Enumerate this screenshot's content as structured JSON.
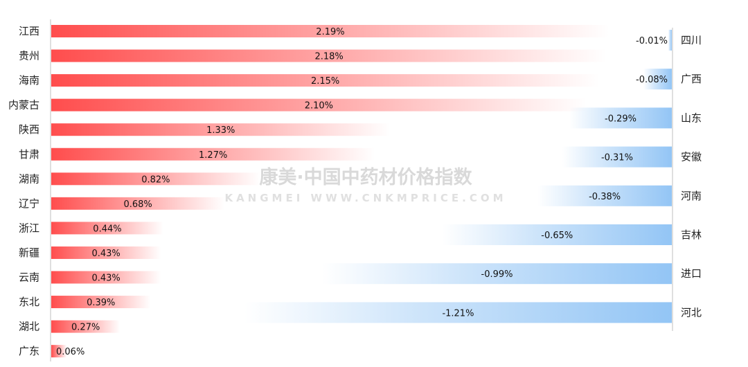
{
  "watermark": {
    "line1": "康美·中国中药材价格指数",
    "line2": "KANGMEI WWW.CNKMPRICE.COM"
  },
  "colors": {
    "positive": "#ff4d4d",
    "negative": "#93c5f5",
    "axis": "#bfbfbf"
  },
  "chart_data": [
    {
      "type": "bar",
      "orientation": "horizontal",
      "categories": [
        "江西",
        "贵州",
        "海南",
        "内蒙古",
        "陕西",
        "甘肃",
        "湖南",
        "辽宁",
        "浙江",
        "新疆",
        "云南",
        "东北",
        "湖北",
        "广东"
      ],
      "values": [
        2.19,
        2.18,
        2.15,
        2.1,
        1.33,
        1.27,
        0.82,
        0.68,
        0.44,
        0.43,
        0.43,
        0.39,
        0.27,
        0.06
      ],
      "labels": [
        "2.19%",
        "2.18%",
        "2.15%",
        "2.10%",
        "1.33%",
        "1.27%",
        "0.82%",
        "0.68%",
        "0.44%",
        "0.43%",
        "0.43%",
        "0.39%",
        "0.27%",
        "0.06%"
      ],
      "unit": "%"
    },
    {
      "type": "bar",
      "orientation": "horizontal",
      "categories": [
        "四川",
        "广西",
        "山东",
        "安徽",
        "河南",
        "吉林",
        "进口",
        "河北"
      ],
      "values": [
        -0.01,
        -0.08,
        -0.29,
        -0.31,
        -0.38,
        -0.65,
        -0.99,
        -1.21
      ],
      "labels": [
        "-0.01%",
        "-0.08%",
        "-0.29%",
        "-0.31%",
        "-0.38%",
        "-0.65%",
        "-0.99%",
        "-1.21%"
      ],
      "unit": "%"
    }
  ]
}
